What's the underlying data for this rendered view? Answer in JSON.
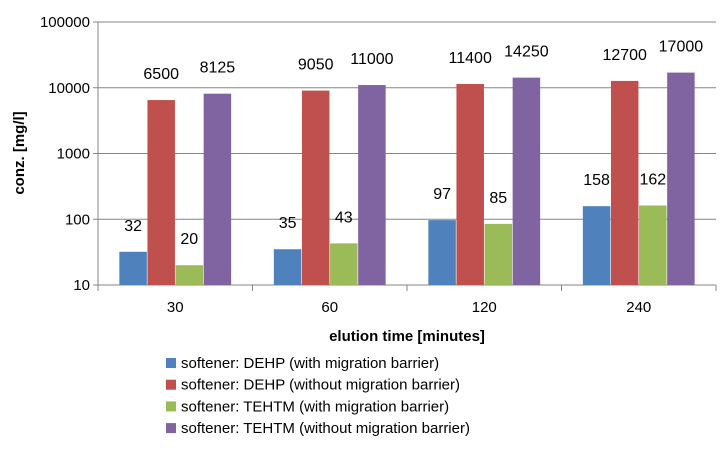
{
  "chart_data": {
    "type": "bar",
    "title": "",
    "xlabel": "elution time [minutes]",
    "ylabel": "conz. [mg/l]",
    "yscale": "log",
    "ylim": [
      10,
      100000
    ],
    "yticks": [
      "10",
      "100",
      "1000",
      "10000",
      "100000"
    ],
    "grid": "horizontal",
    "legend": "bottom",
    "categories": [
      "30",
      "60",
      "120",
      "240"
    ],
    "series": [
      {
        "name": "softener: DEHP (with migration barrier)",
        "color": "#4F81BD",
        "values": [
          32,
          35,
          97,
          158
        ],
        "labels": [
          "32",
          "35",
          "97",
          "158"
        ]
      },
      {
        "name": "softener: DEHP (without migration barrier)",
        "color": "#C0504D",
        "values": [
          6500,
          9050,
          11400,
          12700
        ],
        "labels": [
          "6500",
          "9050",
          "11400",
          "12700"
        ]
      },
      {
        "name": "softener: TEHTM (with migration barrier)",
        "color": "#9BBB59",
        "values": [
          20,
          43,
          85,
          162
        ],
        "labels": [
          "20",
          "43",
          "85",
          "162"
        ]
      },
      {
        "name": "softener: TEHTM (without migration barrier)",
        "color": "#8064A2",
        "values": [
          8125,
          11000,
          14250,
          17000
        ],
        "labels": [
          "8125",
          "11000",
          "14250",
          "17000"
        ]
      }
    ]
  }
}
